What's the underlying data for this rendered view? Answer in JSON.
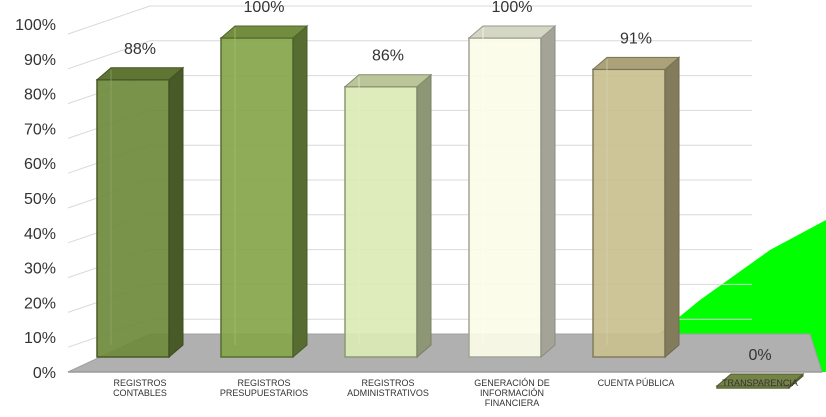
{
  "chart_data": {
    "type": "bar",
    "title": "",
    "xlabel": "",
    "ylabel": "",
    "ylim": [
      0,
      100
    ],
    "yticks": [
      "0%",
      "10%",
      "20%",
      "30%",
      "40%",
      "50%",
      "60%",
      "70%",
      "80%",
      "90%",
      "100%"
    ],
    "grid": true,
    "categories": [
      [
        "REGISTROS",
        "CONTABLES"
      ],
      [
        "REGISTROS",
        "PRESUPUESTARIOS"
      ],
      [
        "REGISTROS",
        "ADMINISTRATIVOS"
      ],
      [
        "GENERACIÓN DE",
        "INFORMACIÓN",
        "FINANCIERA"
      ],
      [
        "CUENTA PÚBLICA"
      ],
      [
        "TRANSPARENCIA"
      ]
    ],
    "values": [
      88,
      100,
      86,
      100,
      91,
      0
    ],
    "value_labels": [
      "88%",
      "100%",
      "86%",
      "100%",
      "91%",
      "0%"
    ],
    "colors": [
      "#6e8a3c",
      "#86a64a",
      "#dbe9b4",
      "#fbfde8",
      "#c9bf8e",
      "#8a9a52"
    ],
    "watermark_color": "#00ff00"
  }
}
